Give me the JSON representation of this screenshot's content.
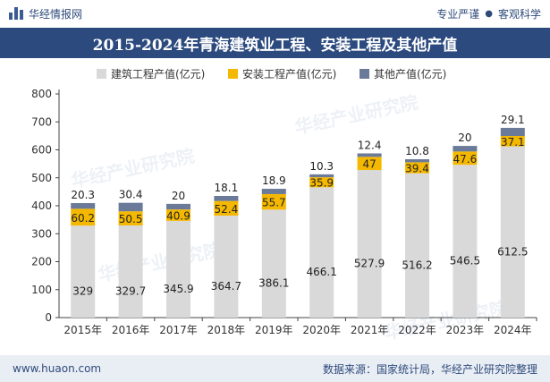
{
  "header": {
    "brand": "华经情报网",
    "slogan_left": "专业严谨",
    "slogan_sep": "●",
    "slogan_right": "客观科学"
  },
  "footer": {
    "website": "www.huaon.com",
    "source": "数据来源：国家统计局，华经产业研究院整理"
  },
  "chart_data": {
    "type": "bar",
    "stacked": true,
    "title": "2015-2024年青海建筑业工程、安装工程及其他产值",
    "categories": [
      "2015年",
      "2016年",
      "2017年",
      "2018年",
      "2019年",
      "2020年",
      "2021年",
      "2022年",
      "2023年",
      "2024年"
    ],
    "series": [
      {
        "name": "建筑工程产值(亿元)",
        "color": "#d9d9d9",
        "labelColor": "#222222",
        "values": [
          329,
          329.7,
          345.9,
          364.7,
          386.1,
          466.1,
          527.9,
          516.2,
          546.5,
          612.5
        ],
        "labels": [
          "329",
          "329.7",
          "345.9",
          "364.7",
          "386.1",
          "466.1",
          "527.9",
          "516.2",
          "546.5",
          "612.5"
        ]
      },
      {
        "name": "安装工程产值(亿元)",
        "color": "#f5b800",
        "labelColor": "#222222",
        "values": [
          60.2,
          50.5,
          40.9,
          52.4,
          55.7,
          35.9,
          47,
          39.4,
          47.6,
          37.1
        ],
        "labels": [
          "60.2",
          "50.5",
          "40.9",
          "52.4",
          "55.7",
          "35.9",
          "47",
          "39.4",
          "47.6",
          "37.1"
        ]
      },
      {
        "name": "其他产值(亿元)",
        "color": "#6b7a99",
        "labelColor": "#222222",
        "values": [
          20.3,
          30.4,
          20,
          18.1,
          18.9,
          10.3,
          12.4,
          10.8,
          20,
          29.1
        ],
        "labels": [
          "20.3",
          "30.4",
          "20",
          "18.1",
          "18.9",
          "10.3",
          "12.4",
          "10.8",
          "20",
          "29.1"
        ]
      }
    ],
    "ylim": [
      0,
      800
    ],
    "yticks": [
      "0",
      "100",
      "200",
      "300",
      "400",
      "500",
      "600",
      "700",
      "800"
    ],
    "legend_position": "top",
    "grid": false,
    "watermark": "华经产业研究院"
  }
}
